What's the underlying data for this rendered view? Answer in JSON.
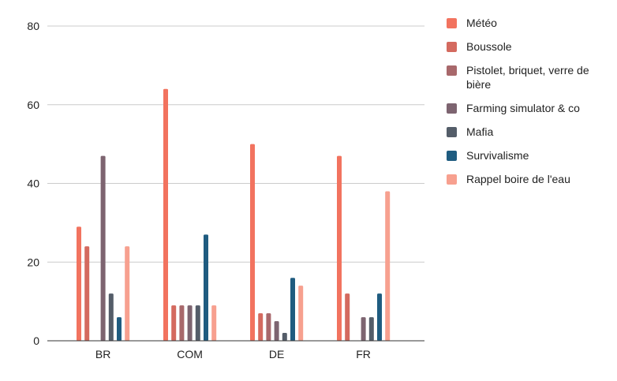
{
  "chart_data": {
    "type": "bar",
    "categories": [
      "BR",
      "COM",
      "DE",
      "FR"
    ],
    "ylim": [
      0,
      80
    ],
    "yticks": [
      0,
      20,
      40,
      60,
      80
    ],
    "grid": true,
    "legend_position": "right",
    "series": [
      {
        "name": "Météo",
        "color": "#f2735f",
        "values": [
          29,
          64,
          50,
          47
        ]
      },
      {
        "name": "Boussole",
        "color": "#d46a5f",
        "values": [
          24,
          9,
          7,
          12
        ]
      },
      {
        "name": "Pistolet, briquet, verre de bière",
        "color": "#a8686b",
        "values": [
          0,
          9,
          7,
          0
        ]
      },
      {
        "name": "Farming simulator & co",
        "color": "#7d6470",
        "values": [
          47,
          9,
          5,
          6
        ]
      },
      {
        "name": "Mafia",
        "color": "#545d69",
        "values": [
          12,
          9,
          2,
          6
        ]
      },
      {
        "name": "Survivalisme",
        "color": "#1f5c80",
        "values": [
          6,
          27,
          16,
          12
        ]
      },
      {
        "name": "Rappel boire de l'eau",
        "color": "#f7a08f",
        "values": [
          24,
          9,
          14,
          38
        ]
      }
    ]
  }
}
